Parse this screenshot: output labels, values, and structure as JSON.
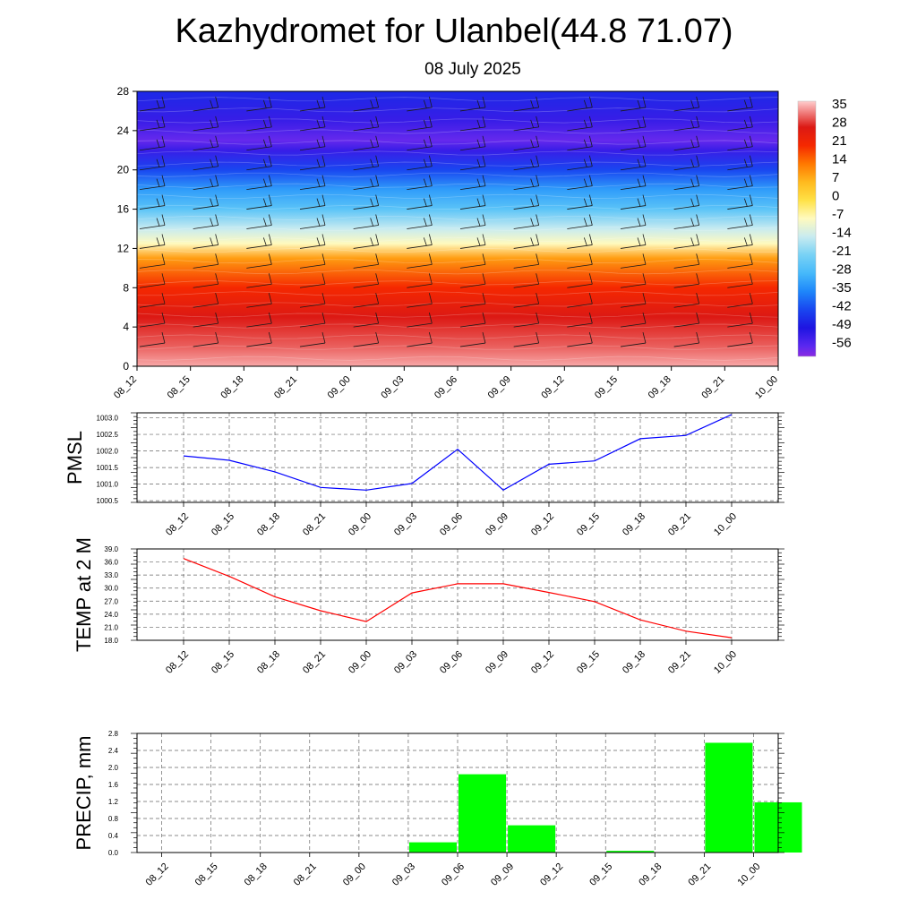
{
  "title": "Kazhydromet for Ulanbel(44.8 71.07)",
  "subtitle": "08 July 2025",
  "time_labels": [
    "08_12",
    "08_15",
    "08_18",
    "08_21",
    "09_00",
    "09_03",
    "09_06",
    "09_09",
    "09_12",
    "09_15",
    "09_18",
    "09_21",
    "10_00"
  ],
  "colors": {
    "pmsl_line": "#0000ff",
    "temp_line": "#ff0000",
    "precip_bar": "#00ff00"
  },
  "chart_data": [
    {
      "type": "heatmap",
      "title": "",
      "xlabel": "",
      "ylabel": "",
      "x": [
        "08_12",
        "08_15",
        "08_18",
        "08_21",
        "09_00",
        "09_03",
        "09_06",
        "09_09",
        "09_12",
        "09_15",
        "09_18",
        "09_21",
        "10_00"
      ],
      "y_ticks": [
        0,
        4,
        8,
        12,
        16,
        20,
        24,
        28
      ],
      "ylim": [
        0,
        28
      ],
      "colorbar_ticks": [
        "35",
        "28",
        "21",
        "14",
        "7",
        "0",
        "-7",
        "-14",
        "-21",
        "-28",
        "-35",
        "-42",
        "-49",
        "-56"
      ],
      "colorbar_range": [
        -60,
        38
      ],
      "temperature_profile": [
        {
          "level": 0,
          "value": 36
        },
        {
          "level": 2,
          "value": 32
        },
        {
          "level": 5,
          "value": 28
        },
        {
          "level": 8,
          "value": 21
        },
        {
          "level": 11,
          "value": 10
        },
        {
          "level": 12.5,
          "value": -7
        },
        {
          "level": 14,
          "value": -14
        },
        {
          "level": 16,
          "value": -25
        },
        {
          "level": 18,
          "value": -32
        },
        {
          "level": 20,
          "value": -42
        },
        {
          "level": 22,
          "value": -52
        },
        {
          "level": 23,
          "value": -57
        },
        {
          "level": 25,
          "value": -52
        },
        {
          "level": 28,
          "value": -46
        }
      ],
      "overlay": "wind barbs",
      "grid": false
    },
    {
      "type": "line",
      "ylabel": "PMSL",
      "x": [
        "08_12",
        "08_15",
        "08_18",
        "08_21",
        "09_00",
        "09_03",
        "09_06",
        "09_09",
        "09_12",
        "09_15",
        "09_18",
        "09_21",
        "10_00"
      ],
      "series": [
        {
          "values": [
            1001.85,
            1001.72,
            1001.37,
            1000.9,
            1000.82,
            1001.02,
            1002.05,
            1000.82,
            1001.6,
            1001.7,
            1002.37,
            1002.47,
            1003.1
          ]
        }
      ],
      "y_ticks": [
        "1000.5",
        "1001.0",
        "1001.5",
        "1002.0",
        "1002.5",
        "1003.0"
      ],
      "ylim": [
        1000.45,
        1003.15
      ],
      "grid": true
    },
    {
      "type": "line",
      "ylabel": "TEMP at 2 M",
      "x": [
        "08_12",
        "08_15",
        "08_18",
        "08_21",
        "09_00",
        "09_03",
        "09_06",
        "09_09",
        "09_12",
        "09_15",
        "09_18",
        "09_21",
        "10_00"
      ],
      "series": [
        {
          "values": [
            36.8,
            32.7,
            28.0,
            24.8,
            22.3,
            28.9,
            31.0,
            31.0,
            29.0,
            26.9,
            22.7,
            20.1,
            18.6
          ]
        }
      ],
      "y_ticks": [
        "18.0",
        "21.0",
        "24.0",
        "27.0",
        "30.0",
        "33.0",
        "36.0",
        "39.0"
      ],
      "ylim": [
        18,
        39
      ],
      "grid": true
    },
    {
      "type": "bar",
      "ylabel": "PRECIP, mm",
      "categories": [
        "08_12",
        "08_15",
        "08_18",
        "08_21",
        "09_00",
        "09_03",
        "09_06",
        "09_09",
        "09_12",
        "09_15",
        "09_18",
        "09_21",
        "10_00"
      ],
      "values": [
        0,
        0,
        0,
        0,
        0,
        0.24,
        1.84,
        0.64,
        0,
        0.04,
        0,
        2.58,
        1.18
      ],
      "y_ticks": [
        "0.0",
        "0.4",
        "0.8",
        "1.2",
        "1.6",
        "2.0",
        "2.4",
        "2.8"
      ],
      "ylim": [
        0,
        2.8
      ],
      "grid": true
    }
  ]
}
